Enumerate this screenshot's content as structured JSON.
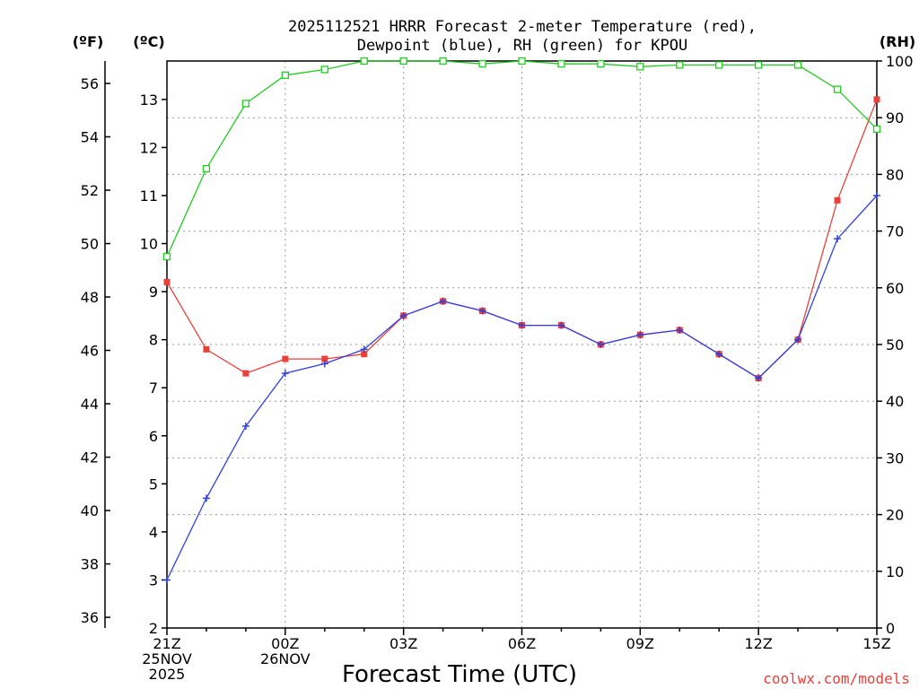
{
  "chart_data": {
    "type": "line",
    "title_line1": "2025112521 HRRR Forecast 2-meter Temperature (red),",
    "title_line2": "Dewpoint (blue), RH (green) for KPOU",
    "xlabel": "Forecast Time (UTC)",
    "credit": "coolwx.com/models",
    "unit_left_f": "(ºF)",
    "unit_left_c": "(ºC)",
    "unit_right": "(RH)",
    "x_hours": [
      0,
      1,
      2,
      3,
      4,
      5,
      6,
      7,
      8,
      9,
      10,
      11,
      12,
      13,
      14,
      15,
      16,
      17,
      18
    ],
    "x_ticks": [
      {
        "hour": 0,
        "lines": [
          "21Z",
          "25NOV",
          "2025"
        ]
      },
      {
        "hour": 3,
        "lines": [
          "00Z",
          "26NOV"
        ]
      },
      {
        "hour": 6,
        "lines": [
          "03Z"
        ]
      },
      {
        "hour": 9,
        "lines": [
          "06Z"
        ]
      },
      {
        "hour": 12,
        "lines": [
          "09Z"
        ]
      },
      {
        "hour": 15,
        "lines": [
          "12Z"
        ]
      },
      {
        "hour": 18,
        "lines": [
          "15Z"
        ]
      }
    ],
    "c_axis": {
      "min": 2,
      "max": 13.8,
      "ticks": [
        2,
        3,
        4,
        5,
        6,
        7,
        8,
        9,
        10,
        11,
        12,
        13
      ]
    },
    "f_axis": {
      "ticks": [
        36,
        38,
        40,
        42,
        44,
        46,
        48,
        50,
        52,
        54,
        56
      ]
    },
    "rh_axis": {
      "min": 0,
      "max": 100,
      "ticks": [
        0,
        10,
        20,
        30,
        40,
        50,
        60,
        70,
        80,
        90,
        100
      ]
    },
    "series": [
      {
        "name": "Temperature",
        "axis": "c",
        "color": "#e8413a",
        "marker": "filled-square",
        "values": [
          9.2,
          7.8,
          7.3,
          7.6,
          7.6,
          7.7,
          8.5,
          8.8,
          8.6,
          8.3,
          8.3,
          7.9,
          8.1,
          8.2,
          7.7,
          7.2,
          8.0,
          10.9,
          13.0
        ]
      },
      {
        "name": "Dewpoint",
        "axis": "c",
        "color": "#3040e0",
        "marker": "plus",
        "values": [
          3.0,
          4.7,
          6.2,
          7.3,
          7.5,
          7.8,
          8.5,
          8.8,
          8.6,
          8.3,
          8.3,
          7.9,
          8.1,
          8.2,
          7.7,
          7.2,
          8.0,
          10.1,
          11.0
        ]
      },
      {
        "name": "RH",
        "axis": "rh",
        "color": "#22cc22",
        "marker": "open-square",
        "values": [
          65.5,
          81,
          92.5,
          97.5,
          98.5,
          100,
          100,
          100,
          99.5,
          100,
          99.5,
          99.5,
          99,
          99.3,
          99.3,
          99.3,
          99.3,
          95,
          88
        ]
      }
    ]
  },
  "colors": {
    "temperature": "#e8413a",
    "dewpoint": "#3040e0",
    "rh": "#22cc22",
    "credit": "#e8413a",
    "grid": "#9a9a9a"
  }
}
